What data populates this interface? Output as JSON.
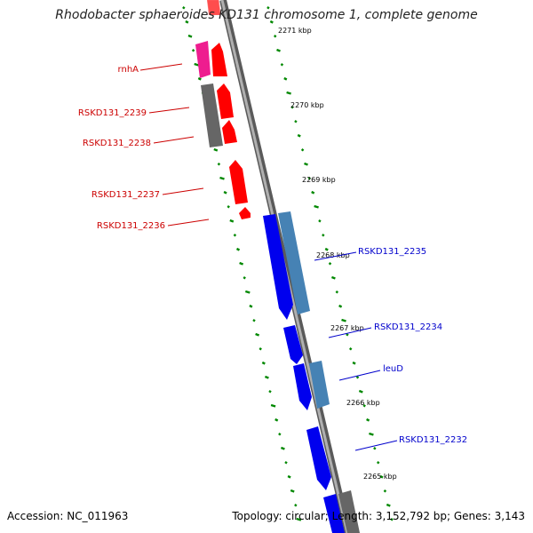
{
  "title": "Rhodobacter sphaeroides KD131 chromosome 1, complete genome",
  "accession": "Accession: NC_011963",
  "summary": "Topology: circular; Length: 3,152,792 bp; Genes: 3,143",
  "colors": {
    "forward_cds": "#ff0000",
    "forward_cds_light": "#ffaaaa",
    "forward_misc": "#ee1d8f",
    "reverse_cds": "#0000ee",
    "reverse_misc": "#4682b4",
    "pseudo": "#666666",
    "backbone": "#888888",
    "gc_ticks": "#008800",
    "forward_label": "#cc0000",
    "reverse_label": "#0000cc"
  },
  "ruler_ticks": [
    "2271 kbp",
    "2270 kbp",
    "2269 kbp",
    "2268 kbp",
    "2267 kbp",
    "2266 kbp",
    "2265 kbp"
  ],
  "forward_labels": [
    "rnhA",
    "RSKD131_2239",
    "RSKD131_2238",
    "RSKD131_2237",
    "RSKD131_2236"
  ],
  "reverse_labels": [
    "RSKD131_2235",
    "RSKD131_2234",
    "leuD",
    "RSKD131_2232"
  ]
}
